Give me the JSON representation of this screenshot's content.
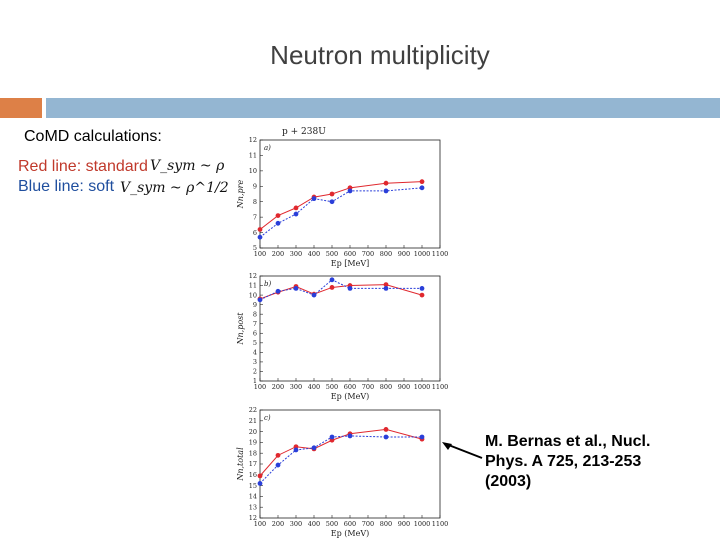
{
  "slide": {
    "title": "Neutron multiplicity",
    "calc_label": "CoMD calculations:",
    "red_label": "Red line: standard",
    "blue_label": "Blue line: soft",
    "red_formula": "V_sym ~ ρ",
    "blue_formula": "V_sym ~ ρ^1/2",
    "reference": "M. Bernas et al., Nucl.\nPhys. A 725, 213-253\n(2003)",
    "colors": {
      "red": "#e0282e",
      "blue": "#2a3fd9",
      "orange_bar": "#dd8047",
      "blue_bar": "#94b6d2"
    }
  },
  "chart_data": [
    {
      "type": "line",
      "panel": "a)",
      "header": "p + 238U",
      "xlabel": "Ep [MeV]",
      "ylabel": "Nn,pre",
      "xlim": [
        100,
        1100
      ],
      "ylim": [
        5,
        12
      ],
      "xticks": [
        100,
        200,
        300,
        400,
        500,
        600,
        700,
        800,
        900,
        1000,
        1100
      ],
      "yticks": [
        5,
        6,
        7,
        8,
        9,
        10,
        11,
        12
      ],
      "series": [
        {
          "color": "red",
          "x": [
            100,
            200,
            300,
            400,
            500,
            600,
            800,
            1000
          ],
          "y": [
            6.2,
            7.1,
            7.6,
            8.3,
            8.5,
            8.9,
            9.2,
            9.3
          ]
        },
        {
          "color": "blue",
          "x": [
            100,
            200,
            300,
            400,
            500,
            600,
            800,
            1000
          ],
          "y": [
            5.7,
            6.6,
            7.2,
            8.2,
            8.0,
            8.7,
            8.7,
            8.9
          ]
        }
      ]
    },
    {
      "type": "line",
      "panel": "b)",
      "xlabel": "Ep (MeV)",
      "ylabel": "Nn,post",
      "xlim": [
        100,
        1100
      ],
      "ylim": [
        1,
        12
      ],
      "xticks": [
        100,
        200,
        300,
        400,
        500,
        600,
        700,
        800,
        900,
        1000,
        1100
      ],
      "yticks": [
        1,
        2,
        3,
        4,
        5,
        6,
        7,
        8,
        9,
        10,
        11,
        12
      ],
      "series": [
        {
          "color": "red",
          "x": [
            100,
            200,
            300,
            400,
            500,
            600,
            800,
            1000
          ],
          "y": [
            9.6,
            10.3,
            10.9,
            10.1,
            10.8,
            11.0,
            11.1,
            10.0
          ]
        },
        {
          "color": "blue",
          "x": [
            100,
            200,
            300,
            400,
            500,
            600,
            800,
            1000
          ],
          "y": [
            9.5,
            10.4,
            10.7,
            10.0,
            11.6,
            10.7,
            10.7,
            10.7
          ]
        }
      ]
    },
    {
      "type": "line",
      "panel": "c)",
      "xlabel": "Ep (MeV)",
      "ylabel": "Nn,total",
      "xlim": [
        100,
        1100
      ],
      "ylim": [
        12,
        22
      ],
      "xticks": [
        100,
        200,
        300,
        400,
        500,
        600,
        700,
        800,
        900,
        1000,
        1100
      ],
      "yticks": [
        12,
        13,
        14,
        15,
        16,
        17,
        18,
        19,
        20,
        21,
        22
      ],
      "series": [
        {
          "color": "red",
          "x": [
            100,
            200,
            300,
            400,
            500,
            600,
            800,
            1000
          ],
          "y": [
            15.9,
            17.8,
            18.6,
            18.4,
            19.2,
            19.8,
            20.2,
            19.3
          ]
        },
        {
          "color": "blue",
          "x": [
            100,
            200,
            300,
            400,
            500,
            600,
            800,
            1000
          ],
          "y": [
            15.2,
            16.9,
            18.3,
            18.5,
            19.5,
            19.6,
            19.5,
            19.5
          ]
        }
      ]
    }
  ]
}
